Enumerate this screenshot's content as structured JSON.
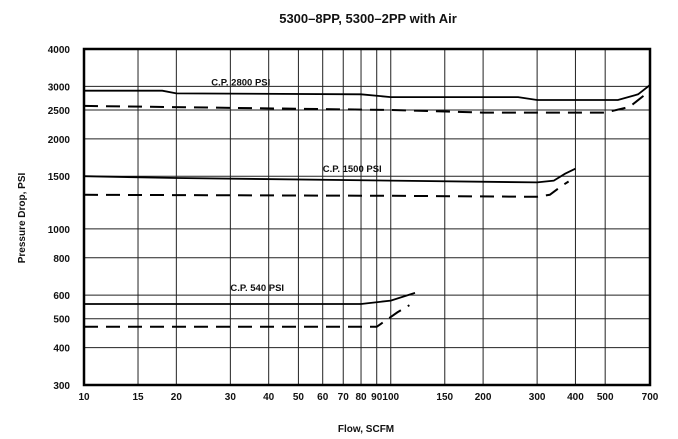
{
  "chart_data": {
    "type": "line",
    "title": "5300–8PP, 5300–2PP with Air",
    "xlabel": "Flow, SCFM",
    "ylabel": "Pressure Drop, PSI",
    "xscale": "log",
    "yscale": "log",
    "xlim": [
      10,
      700
    ],
    "ylim": [
      300,
      4000
    ],
    "grid": true,
    "x_ticks": [
      10,
      15,
      20,
      30,
      40,
      50,
      60,
      70,
      80,
      90,
      100,
      150,
      200,
      300,
      400,
      500,
      700
    ],
    "x_tick_labels": [
      "10",
      "15",
      "20",
      "30",
      "40",
      "50",
      "60",
      "70",
      "80",
      "90",
      "100",
      "150",
      "200",
      "300",
      "400",
      "500",
      "700"
    ],
    "y_ticks": [
      300,
      400,
      500,
      600,
      800,
      1000,
      1500,
      2000,
      2500,
      3000,
      4000
    ],
    "y_tick_labels": [
      "300",
      "400",
      "500",
      "600",
      "800",
      "1000",
      "1500",
      "2000",
      "2500",
      "3000",
      "4000"
    ],
    "annotations": [
      {
        "text": "C.P. 2800 PSI",
        "x": 26,
        "y": 3020
      },
      {
        "text": "C.P. 1500 PSI",
        "x": 60,
        "y": 1550
      },
      {
        "text": "C.P. 540 PSI",
        "x": 30,
        "y": 620
      }
    ],
    "series": [
      {
        "style": "solid",
        "points": [
          [
            10,
            2900
          ],
          [
            18,
            2900
          ],
          [
            20,
            2840
          ],
          [
            80,
            2820
          ],
          [
            100,
            2760
          ],
          [
            260,
            2760
          ],
          [
            300,
            2700
          ],
          [
            550,
            2700
          ],
          [
            640,
            2820
          ],
          [
            700,
            3030
          ]
        ]
      },
      {
        "style": "dashed",
        "points": [
          [
            10,
            2580
          ],
          [
            100,
            2500
          ],
          [
            200,
            2450
          ],
          [
            500,
            2450
          ],
          [
            600,
            2560
          ],
          [
            700,
            2900
          ]
        ]
      },
      {
        "style": "solid",
        "points": [
          [
            10,
            1500
          ],
          [
            20,
            1480
          ],
          [
            100,
            1450
          ],
          [
            300,
            1430
          ],
          [
            340,
            1450
          ],
          [
            370,
            1530
          ],
          [
            400,
            1590
          ]
        ]
      },
      {
        "style": "dashed",
        "points": [
          [
            10,
            1300
          ],
          [
            100,
            1290
          ],
          [
            300,
            1280
          ],
          [
            330,
            1300
          ],
          [
            360,
            1390
          ],
          [
            380,
            1440
          ]
        ]
      },
      {
        "style": "solid",
        "points": [
          [
            10,
            560
          ],
          [
            80,
            560
          ],
          [
            100,
            575
          ],
          [
            120,
            610
          ]
        ]
      },
      {
        "style": "dashed",
        "points": [
          [
            10,
            470
          ],
          [
            90,
            470
          ],
          [
            105,
            525
          ],
          [
            115,
            555
          ]
        ]
      }
    ]
  }
}
